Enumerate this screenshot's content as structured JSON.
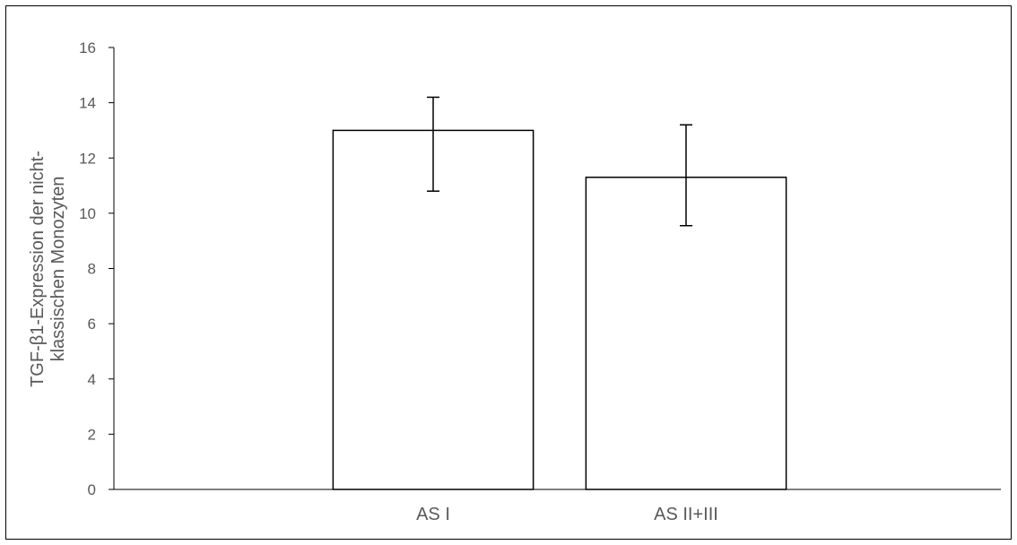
{
  "chart_data": {
    "type": "bar",
    "categories": [
      "AS I",
      "AS II+III"
    ],
    "values": [
      13.0,
      11.3
    ],
    "error_bars": [
      {
        "low": 10.8,
        "high": 14.2
      },
      {
        "low": 9.55,
        "high": 13.2
      }
    ],
    "title": "",
    "xlabel": "",
    "ylabel_lines": [
      "TGF-β1-Expression der nicht-",
      "klassischen Monozyten"
    ],
    "ylim": [
      0,
      16
    ],
    "yticks": [
      "0",
      "2",
      "4",
      "6",
      "8",
      "10",
      "12",
      "14",
      "16"
    ],
    "grid": false,
    "legend": "none",
    "bar_fill": "#ffffff",
    "bar_stroke": "#000000"
  }
}
